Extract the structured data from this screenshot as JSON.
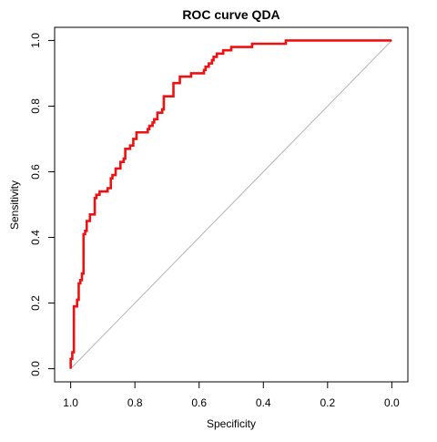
{
  "chart_data": {
    "type": "line",
    "title": "ROC curve QDA",
    "xlabel": "Specificity",
    "ylabel": "Sensitivity",
    "xlim": [
      1.05,
      -0.05
    ],
    "ylim": [
      -0.04,
      1.04
    ],
    "x_reversed": true,
    "grid": false,
    "x_ticks": [
      1.0,
      0.8,
      0.6,
      0.4,
      0.2,
      0.0
    ],
    "x_tick_labels": [
      "1.0",
      "0.8",
      "0.6",
      "0.4",
      "0.2",
      "0.0"
    ],
    "y_ticks": [
      0.0,
      0.2,
      0.4,
      0.6,
      0.8,
      1.0
    ],
    "y_tick_labels": [
      "0.0",
      "0.2",
      "0.4",
      "0.6",
      "0.8",
      "1.0"
    ],
    "reference_line": {
      "from": [
        1.0,
        0.0
      ],
      "to": [
        0.0,
        1.0
      ],
      "color": "#b3b3b3"
    },
    "series": [
      {
        "color": "#ee1111",
        "points": [
          [
            1.0,
            0.0
          ],
          [
            1.0,
            0.03
          ],
          [
            0.995,
            0.03
          ],
          [
            0.995,
            0.05
          ],
          [
            0.99,
            0.05
          ],
          [
            0.99,
            0.19
          ],
          [
            0.98,
            0.19
          ],
          [
            0.98,
            0.21
          ],
          [
            0.975,
            0.21
          ],
          [
            0.975,
            0.26
          ],
          [
            0.97,
            0.26
          ],
          [
            0.97,
            0.27
          ],
          [
            0.965,
            0.27
          ],
          [
            0.965,
            0.29
          ],
          [
            0.96,
            0.29
          ],
          [
            0.96,
            0.41
          ],
          [
            0.955,
            0.41
          ],
          [
            0.955,
            0.42
          ],
          [
            0.95,
            0.42
          ],
          [
            0.95,
            0.45
          ],
          [
            0.94,
            0.45
          ],
          [
            0.94,
            0.47
          ],
          [
            0.925,
            0.47
          ],
          [
            0.925,
            0.52
          ],
          [
            0.92,
            0.52
          ],
          [
            0.92,
            0.53
          ],
          [
            0.91,
            0.53
          ],
          [
            0.91,
            0.54
          ],
          [
            0.885,
            0.54
          ],
          [
            0.885,
            0.55
          ],
          [
            0.875,
            0.55
          ],
          [
            0.875,
            0.58
          ],
          [
            0.87,
            0.58
          ],
          [
            0.87,
            0.59
          ],
          [
            0.86,
            0.59
          ],
          [
            0.86,
            0.61
          ],
          [
            0.845,
            0.61
          ],
          [
            0.845,
            0.63
          ],
          [
            0.835,
            0.63
          ],
          [
            0.835,
            0.64
          ],
          [
            0.83,
            0.64
          ],
          [
            0.83,
            0.67
          ],
          [
            0.815,
            0.67
          ],
          [
            0.815,
            0.68
          ],
          [
            0.805,
            0.68
          ],
          [
            0.805,
            0.7
          ],
          [
            0.795,
            0.7
          ],
          [
            0.795,
            0.72
          ],
          [
            0.76,
            0.72
          ],
          [
            0.76,
            0.73
          ],
          [
            0.755,
            0.73
          ],
          [
            0.755,
            0.74
          ],
          [
            0.745,
            0.74
          ],
          [
            0.745,
            0.75
          ],
          [
            0.74,
            0.75
          ],
          [
            0.74,
            0.76
          ],
          [
            0.73,
            0.76
          ],
          [
            0.73,
            0.78
          ],
          [
            0.715,
            0.78
          ],
          [
            0.715,
            0.79
          ],
          [
            0.71,
            0.79
          ],
          [
            0.71,
            0.83
          ],
          [
            0.68,
            0.83
          ],
          [
            0.68,
            0.87
          ],
          [
            0.66,
            0.87
          ],
          [
            0.66,
            0.89
          ],
          [
            0.625,
            0.89
          ],
          [
            0.625,
            0.9
          ],
          [
            0.585,
            0.9
          ],
          [
            0.585,
            0.91
          ],
          [
            0.58,
            0.91
          ],
          [
            0.58,
            0.92
          ],
          [
            0.57,
            0.92
          ],
          [
            0.57,
            0.93
          ],
          [
            0.56,
            0.93
          ],
          [
            0.56,
            0.94
          ],
          [
            0.555,
            0.94
          ],
          [
            0.555,
            0.95
          ],
          [
            0.545,
            0.95
          ],
          [
            0.545,
            0.96
          ],
          [
            0.525,
            0.96
          ],
          [
            0.525,
            0.97
          ],
          [
            0.5,
            0.97
          ],
          [
            0.5,
            0.98
          ],
          [
            0.435,
            0.98
          ],
          [
            0.435,
            0.99
          ],
          [
            0.33,
            0.99
          ],
          [
            0.33,
            1.0
          ],
          [
            0.0,
            1.0
          ]
        ]
      }
    ]
  }
}
